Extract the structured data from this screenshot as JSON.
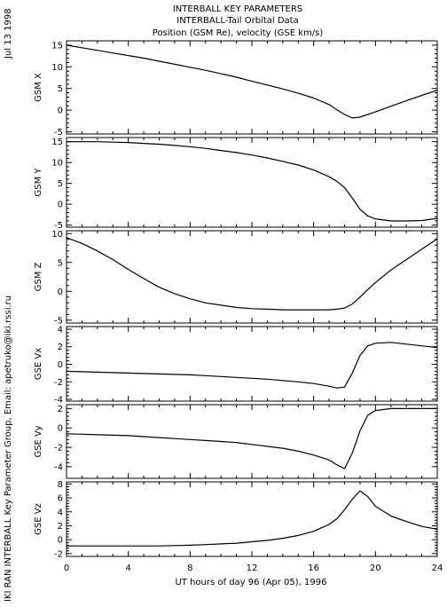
{
  "header": {
    "title": "INTERBALL KEY PARAMETERS",
    "subtitle": "INTERBALL-Tail Orbital Data",
    "subtitle2": "Position (GSM Re), velocity (GSE km/s)"
  },
  "side_labels": {
    "date": "Jul 13 1998",
    "credit": "IKI RAN INTERBALL Key Parameter Group, Email: apetruko@iki.rssi.ru"
  },
  "chart_data": {
    "type": "line",
    "xlabel": "UT hours of day  96 (Apr 05), 1996",
    "xlim": [
      0,
      24
    ],
    "x_ticks": [
      0,
      4,
      8,
      12,
      16,
      20,
      24
    ],
    "x_tick_labels": [
      "0",
      "4",
      "8",
      "12",
      "16",
      "20",
      "24"
    ],
    "x": [
      0,
      1,
      2,
      3,
      4,
      5,
      6,
      7,
      8,
      9,
      10,
      11,
      12,
      13,
      14,
      15,
      16,
      17,
      17.5,
      18,
      18.5,
      19,
      19.5,
      20,
      21,
      22,
      23,
      24
    ],
    "panels": [
      {
        "ylabel": "GSM X",
        "ylim": [
          -5.5,
          16
        ],
        "y_ticks": [
          -5,
          0,
          5,
          10,
          15
        ],
        "y_tick_labels": [
          "-5",
          "0",
          "5",
          "10",
          "15"
        ],
        "values": [
          15,
          14.4,
          13.8,
          13.2,
          12.6,
          12,
          11.3,
          10.6,
          9.9,
          9.2,
          8.4,
          7.6,
          6.7,
          5.8,
          4.9,
          3.9,
          2.8,
          1.3,
          0.1,
          -1,
          -1.8,
          -1.6,
          -1.0,
          -0.4,
          0.9,
          2.2,
          3.4,
          4.6
        ]
      },
      {
        "ylabel": "GSM Y",
        "ylim": [
          -5.5,
          16
        ],
        "y_ticks": [
          -5,
          0,
          5,
          10,
          15
        ],
        "y_tick_labels": [
          "-5",
          "0",
          "5",
          "10",
          "15"
        ],
        "values": [
          15,
          15,
          15,
          14.9,
          14.8,
          14.6,
          14.4,
          14.1,
          13.8,
          13.4,
          12.9,
          12.4,
          11.8,
          11.1,
          10.3,
          9.4,
          8.2,
          6.6,
          5.5,
          4.0,
          1.5,
          -1.2,
          -2.8,
          -3.5,
          -4,
          -4,
          -3.9,
          -3.4
        ]
      },
      {
        "ylabel": "GSM Z",
        "ylim": [
          -5.5,
          10.5
        ],
        "y_ticks": [
          -5,
          0,
          5,
          10
        ],
        "y_tick_labels": [
          "-5",
          "0",
          "5",
          "10"
        ],
        "values": [
          9.3,
          8.3,
          7,
          5.5,
          3.8,
          2.2,
          0.7,
          -0.4,
          -1.3,
          -2,
          -2.4,
          -2.8,
          -3,
          -3.1,
          -3.2,
          -3.2,
          -3.2,
          -3.2,
          -3.1,
          -2.9,
          -2.2,
          -1,
          0.3,
          1.5,
          3.7,
          5.5,
          7.3,
          9.1
        ]
      },
      {
        "ylabel": "GSE Vx",
        "ylim": [
          -4.2,
          4.3
        ],
        "y_ticks": [
          -4,
          -2,
          0,
          2,
          4
        ],
        "y_tick_labels": [
          "-4",
          "-2",
          "0",
          "2",
          "4"
        ],
        "values": [
          -0.8,
          -0.85,
          -0.9,
          -0.95,
          -1.0,
          -1.05,
          -1.1,
          -1.15,
          -1.2,
          -1.3,
          -1.4,
          -1.5,
          -1.6,
          -1.7,
          -1.85,
          -2.0,
          -2.2,
          -2.5,
          -2.7,
          -2.6,
          -1.0,
          1.0,
          2.1,
          2.4,
          2.5,
          2.3,
          2.1,
          1.9
        ]
      },
      {
        "ylabel": "GSE Vy",
        "ylim": [
          -5.2,
          2.4
        ],
        "y_ticks": [
          -4,
          -2,
          0,
          2
        ],
        "y_tick_labels": [
          "-4",
          "-2",
          "0",
          "2"
        ],
        "values": [
          -0.6,
          -0.65,
          -0.7,
          -0.75,
          -0.8,
          -0.9,
          -1.0,
          -1.1,
          -1.2,
          -1.3,
          -1.4,
          -1.5,
          -1.7,
          -1.9,
          -2.1,
          -2.4,
          -2.8,
          -3.3,
          -3.8,
          -4.2,
          -2.6,
          -0.3,
          1.3,
          1.8,
          2.0,
          2.0,
          2.0,
          2.0
        ]
      },
      {
        "ylabel": "GSE Vz",
        "ylim": [
          -2.4,
          8.3
        ],
        "y_ticks": [
          -2,
          0,
          2,
          4,
          6,
          8
        ],
        "y_tick_labels": [
          "-2",
          "0",
          "2",
          "4",
          "6",
          "8"
        ],
        "values": [
          -0.9,
          -0.9,
          -0.9,
          -0.9,
          -0.9,
          -0.9,
          -0.9,
          -0.85,
          -0.8,
          -0.7,
          -0.6,
          -0.5,
          -0.3,
          -0.1,
          0.2,
          0.6,
          1.2,
          2.2,
          3.0,
          4.3,
          5.8,
          7.0,
          6.2,
          4.8,
          3.4,
          2.6,
          1.9,
          1.5
        ]
      }
    ]
  }
}
